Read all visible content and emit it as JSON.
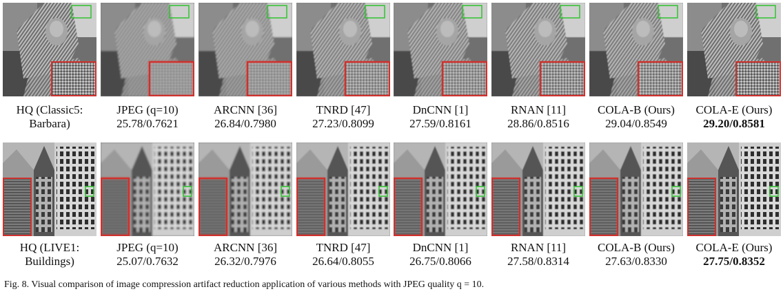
{
  "row1": [
    {
      "line1": "HQ (Classic5:",
      "line2": "Barbara)",
      "bold": false
    },
    {
      "line1": "JPEG (q=10)",
      "line2": "25.78/0.7621",
      "bold": false
    },
    {
      "line1": "ARCNN [36]",
      "line2": "26.84/0.7980",
      "bold": false
    },
    {
      "line1": "TNRD [47]",
      "line2": "27.23/0.8099",
      "bold": false
    },
    {
      "line1": "DnCNN [1]",
      "line2": "27.59/0.8161",
      "bold": false
    },
    {
      "line1": "RNAN [11]",
      "line2": "28.86/0.8516",
      "bold": false
    },
    {
      "line1": "COLA-B (Ours)",
      "line2": "29.04/0.8549",
      "bold": false
    },
    {
      "line1": "COLA-E (Ours)",
      "line2": "29.20/0.8581",
      "bold": true
    }
  ],
  "row2": [
    {
      "line1": "HQ (LIVE1:",
      "line2": "Buildings)",
      "bold": false
    },
    {
      "line1": "JPEG (q=10)",
      "line2": "25.07/0.7632",
      "bold": false
    },
    {
      "line1": "ARCNN [36]",
      "line2": "26.32/0.7976",
      "bold": false
    },
    {
      "line1": "TNRD [47]",
      "line2": "26.64/0.8055",
      "bold": false
    },
    {
      "line1": "DnCNN [1]",
      "line2": "26.75/0.8066",
      "bold": false
    },
    {
      "line1": "RNAN [11]",
      "line2": "27.58/0.8314",
      "bold": false
    },
    {
      "line1": "COLA-B (Ours)",
      "line2": "27.63/0.8330",
      "bold": false
    },
    {
      "line1": "COLA-E (Ours)",
      "line2": "27.75/0.8352",
      "bold": true
    }
  ],
  "figure_caption": "Fig. 8.  Visual comparison of image compression artifact reduction application of various methods with JPEG quality q = 10.",
  "colors": {
    "zoom_box": "#d0302c",
    "roi_box": "#2fc42f"
  }
}
